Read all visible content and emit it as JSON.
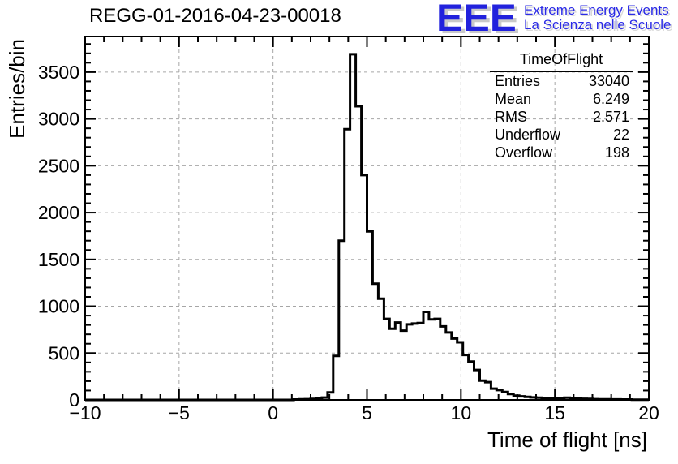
{
  "header": {
    "title": "REGG-01-2016-04-23-00018"
  },
  "logo": {
    "acronym": "EEE",
    "line1": "Extreme Energy Events",
    "line2": "La Scienza nelle Scuole",
    "acronym_color": "#2222dd",
    "text_color": "#2a2ae6",
    "shadow_color": "#c9c9c9"
  },
  "stats": {
    "title": "TimeOfFlight",
    "entries_label": "Entries",
    "entries_value": "33040",
    "mean_label": "Mean",
    "mean_value": "6.249",
    "rms_label": "RMS",
    "rms_value": "2.571",
    "underflow_label": "Underflow",
    "underflow_value": "22",
    "overflow_label": "Overflow",
    "overflow_value": "198"
  },
  "chart_data": {
    "type": "bar",
    "style": "step-histogram",
    "title": "REGG-01-2016-04-23-00018",
    "xlabel": "Time of flight [ns]",
    "ylabel": "Entries/bin",
    "xlim": [
      -10,
      20
    ],
    "ylim": [
      0,
      3880
    ],
    "xticks": [
      -10,
      -5,
      0,
      5,
      10,
      15,
      20
    ],
    "yticks": [
      0,
      500,
      1000,
      1500,
      2000,
      2500,
      3000,
      3500
    ],
    "minor_x_step": 1,
    "minor_y_step": 100,
    "grid": "dashed-gray-on-major-ticks",
    "grid_color": "#a6a6a6",
    "line_color": "#000000",
    "bin_width": 0.3,
    "first_bin_left_edge": 1.1,
    "counts": [
      4,
      6,
      8,
      10,
      14,
      25,
      80,
      470,
      1700,
      2890,
      3690,
      3135,
      2400,
      1800,
      1240,
      1080,
      865,
      760,
      826,
      740,
      806,
      815,
      820,
      940,
      860,
      865,
      785,
      720,
      655,
      615,
      480,
      410,
      320,
      205,
      190,
      120,
      105,
      84,
      63,
      46,
      38,
      32,
      27,
      24,
      21,
      18,
      16,
      15,
      24,
      20,
      14,
      12,
      10,
      8,
      7,
      6,
      5,
      5,
      4,
      4,
      3,
      3,
      2
    ]
  }
}
